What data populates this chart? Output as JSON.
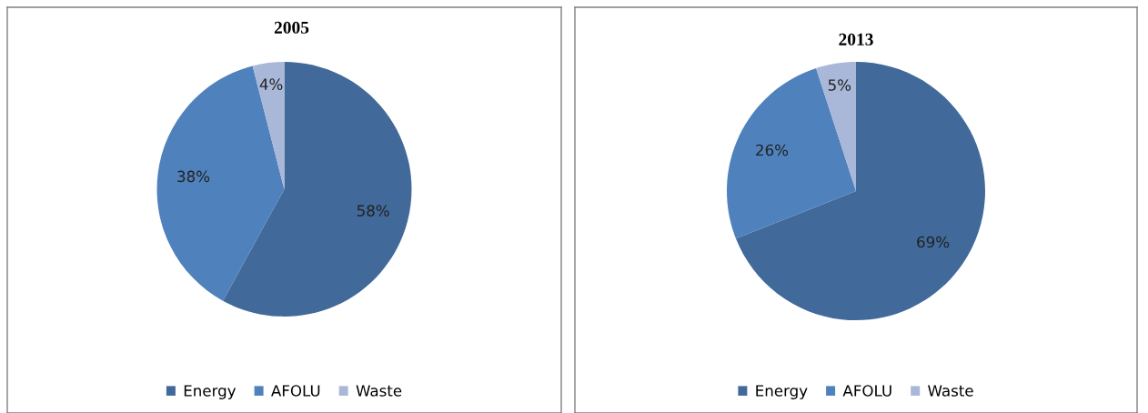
{
  "chart_data": [
    {
      "type": "pie",
      "title": "2005",
      "categories": [
        "Energy",
        "AFOLU",
        "Waste"
      ],
      "values": [
        58,
        38,
        4
      ],
      "value_labels": [
        "58%",
        "38%",
        "4%"
      ],
      "colors": [
        "#41699a",
        "#4f81bd",
        "#a9b8d8"
      ],
      "legend": "bottom"
    },
    {
      "type": "pie",
      "title": "2013",
      "categories": [
        "Energy",
        "AFOLU",
        "Waste"
      ],
      "values": [
        69,
        26,
        5
      ],
      "value_labels": [
        "69%",
        "26%",
        "5%"
      ],
      "colors": [
        "#41699a",
        "#4f81bd",
        "#a9b8d8"
      ],
      "legend": "bottom"
    }
  ]
}
